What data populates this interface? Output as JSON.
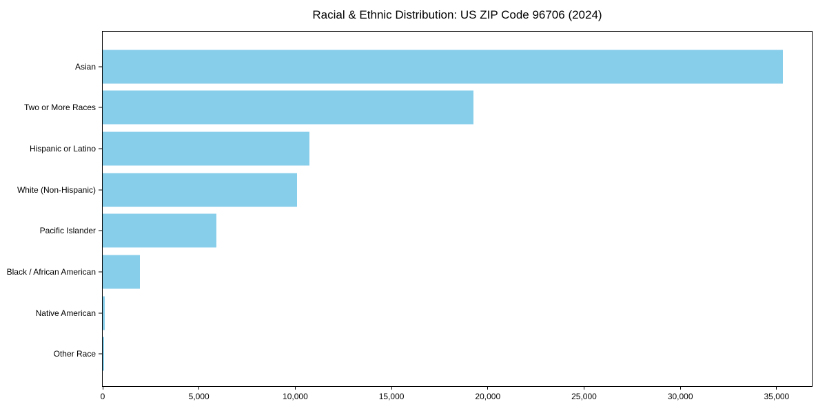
{
  "colors": {
    "bar": "#87CEEB",
    "axis": "#000000",
    "background": "#FFFFFF",
    "text": "#000000"
  },
  "chart_data": {
    "type": "bar",
    "orientation": "horizontal",
    "title": "Racial & Ethnic Distribution: US ZIP Code 96706 (2024)",
    "categories": [
      "Asian",
      "Two or More Races",
      "Hispanic or Latino",
      "White (Non-Hispanic)",
      "Pacific Islander",
      "Black / African American",
      "Native American",
      "Other Race"
    ],
    "values": [
      35330,
      19250,
      10750,
      10090,
      5920,
      1945,
      120,
      80
    ],
    "xlabel": "",
    "ylabel": "",
    "xlim": [
      0,
      36830
    ],
    "x_ticks": [
      0,
      5000,
      10000,
      15000,
      20000,
      25000,
      30000,
      35000
    ],
    "x_tick_labels": [
      "0",
      "5,000",
      "10,000",
      "15,000",
      "20,000",
      "25,000",
      "30,000",
      "35,000"
    ],
    "bar_color": "#87CEEB",
    "grid": false,
    "legend": null
  }
}
